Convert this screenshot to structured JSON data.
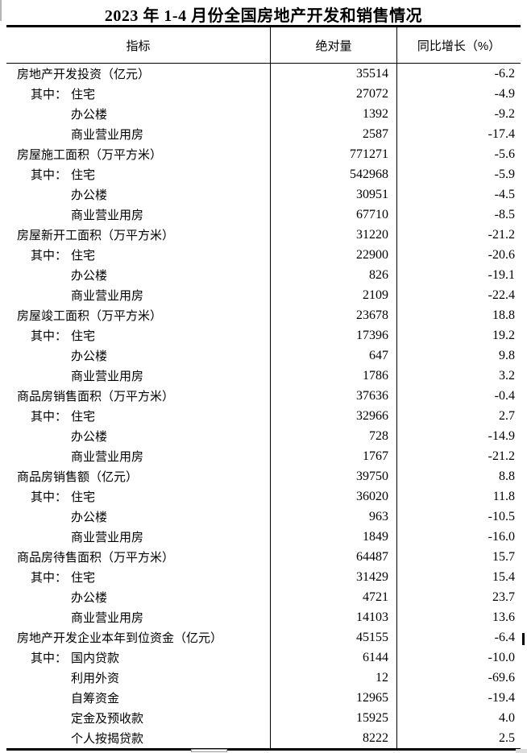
{
  "title": "2023 年 1-4 月份全国房地产开发和销售情况",
  "table": {
    "headers": [
      "指标",
      "绝对量",
      "同比增长（%）"
    ],
    "rows": [
      {
        "indent": 0,
        "prefix": "",
        "label": "房地产开发投资（亿元）",
        "abs": "35514",
        "yoy": "-6.2"
      },
      {
        "indent": 1,
        "prefix": "其中：",
        "label": "住宅",
        "abs": "27072",
        "yoy": "-4.9"
      },
      {
        "indent": 2,
        "prefix": "",
        "label": "办公楼",
        "abs": "1392",
        "yoy": "-9.2"
      },
      {
        "indent": 2,
        "prefix": "",
        "label": "商业营业用房",
        "abs": "2587",
        "yoy": "-17.4"
      },
      {
        "indent": 0,
        "prefix": "",
        "label": "房屋施工面积（万平方米）",
        "abs": "771271",
        "yoy": "-5.6"
      },
      {
        "indent": 1,
        "prefix": "其中：",
        "label": "住宅",
        "abs": "542968",
        "yoy": "-5.9"
      },
      {
        "indent": 2,
        "prefix": "",
        "label": "办公楼",
        "abs": "30951",
        "yoy": "-4.5"
      },
      {
        "indent": 2,
        "prefix": "",
        "label": "商业营业用房",
        "abs": "67710",
        "yoy": "-8.5"
      },
      {
        "indent": 0,
        "prefix": "",
        "label": "房屋新开工面积（万平方米）",
        "abs": "31220",
        "yoy": "-21.2"
      },
      {
        "indent": 1,
        "prefix": "其中：",
        "label": "住宅",
        "abs": "22900",
        "yoy": "-20.6"
      },
      {
        "indent": 2,
        "prefix": "",
        "label": "办公楼",
        "abs": "826",
        "yoy": "-19.1"
      },
      {
        "indent": 2,
        "prefix": "",
        "label": "商业营业用房",
        "abs": "2109",
        "yoy": "-22.4"
      },
      {
        "indent": 0,
        "prefix": "",
        "label": "房屋竣工面积（万平方米）",
        "abs": "23678",
        "yoy": "18.8"
      },
      {
        "indent": 1,
        "prefix": "其中：",
        "label": "住宅",
        "abs": "17396",
        "yoy": "19.2"
      },
      {
        "indent": 2,
        "prefix": "",
        "label": "办公楼",
        "abs": "647",
        "yoy": "9.8"
      },
      {
        "indent": 2,
        "prefix": "",
        "label": "商业营业用房",
        "abs": "1786",
        "yoy": "3.2"
      },
      {
        "indent": 0,
        "prefix": "",
        "label": "商品房销售面积（万平方米）",
        "abs": "37636",
        "yoy": "-0.4"
      },
      {
        "indent": 1,
        "prefix": "其中：",
        "label": "住宅",
        "abs": "32966",
        "yoy": "2.7"
      },
      {
        "indent": 2,
        "prefix": "",
        "label": "办公楼",
        "abs": "728",
        "yoy": "-14.9"
      },
      {
        "indent": 2,
        "prefix": "",
        "label": "商业营业用房",
        "abs": "1767",
        "yoy": "-21.2"
      },
      {
        "indent": 0,
        "prefix": "",
        "label": "商品房销售额（亿元）",
        "abs": "39750",
        "yoy": "8.8"
      },
      {
        "indent": 1,
        "prefix": "其中：",
        "label": "住宅",
        "abs": "36020",
        "yoy": "11.8"
      },
      {
        "indent": 2,
        "prefix": "",
        "label": "办公楼",
        "abs": "963",
        "yoy": "-10.5"
      },
      {
        "indent": 2,
        "prefix": "",
        "label": "商业营业用房",
        "abs": "1849",
        "yoy": "-16.0"
      },
      {
        "indent": 0,
        "prefix": "",
        "label": "商品房待售面积（万平方米）",
        "abs": "64487",
        "yoy": "15.7"
      },
      {
        "indent": 1,
        "prefix": "其中：",
        "label": "住宅",
        "abs": "31429",
        "yoy": "15.4"
      },
      {
        "indent": 2,
        "prefix": "",
        "label": "办公楼",
        "abs": "4721",
        "yoy": "23.7"
      },
      {
        "indent": 2,
        "prefix": "",
        "label": "商业营业用房",
        "abs": "14103",
        "yoy": "13.6"
      },
      {
        "indent": 0,
        "prefix": "",
        "label": "房地产开发企业本年到位资金（亿元）",
        "abs": "45155",
        "yoy": "-6.4"
      },
      {
        "indent": 1,
        "prefix": "其中：",
        "label": "国内贷款",
        "abs": "6144",
        "yoy": "-10.0"
      },
      {
        "indent": 2,
        "prefix": "",
        "label": "利用外资",
        "abs": "12",
        "yoy": "-69.6"
      },
      {
        "indent": 2,
        "prefix": "",
        "label": "自筹资金",
        "abs": "12965",
        "yoy": "-19.4"
      },
      {
        "indent": 2,
        "prefix": "",
        "label": "定金及预收款",
        "abs": "15925",
        "yoy": "4.0"
      },
      {
        "indent": 2,
        "prefix": "",
        "label": "个人按揭贷款",
        "abs": "8222",
        "yoy": "2.5"
      }
    ]
  }
}
